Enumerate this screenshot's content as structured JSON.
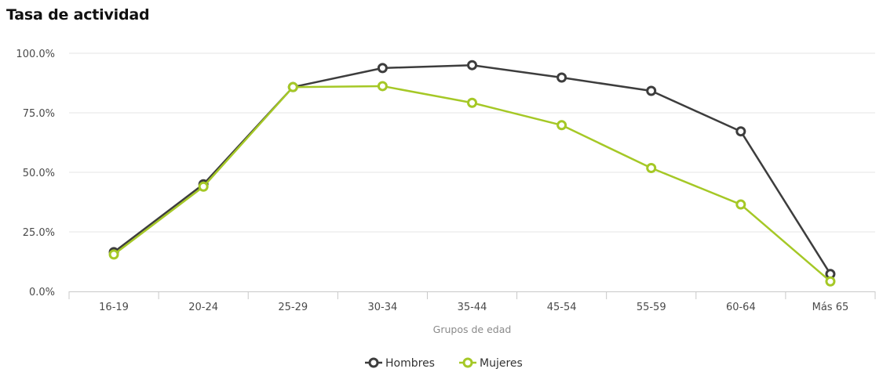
{
  "chart_data": {
    "type": "line",
    "title": "Tasa de actividad",
    "xlabel": "Grupos de edad",
    "ylabel": "",
    "categories": [
      "16-19",
      "20-24",
      "25-29",
      "30-34",
      "35-44",
      "45-54",
      "55-59",
      "60-64",
      "Más 65"
    ],
    "ylim": [
      0,
      100
    ],
    "yticks": [
      "0.0%",
      "25.0%",
      "50.0%",
      "75.0%",
      "100.0%"
    ],
    "ytick_values": [
      0,
      25,
      50,
      75,
      100
    ],
    "grid": true,
    "legend_position": "bottom-center",
    "series": [
      {
        "name": "Hombres",
        "color": "#3d3d3d",
        "values": [
          16.5,
          45.0,
          85.8,
          93.8,
          95.0,
          89.8,
          84.2,
          67.2,
          7.3
        ]
      },
      {
        "name": "Mujeres",
        "color": "#a5c826",
        "values": [
          15.5,
          44.0,
          85.8,
          86.2,
          79.2,
          69.8,
          51.8,
          36.5,
          4.2
        ]
      }
    ]
  }
}
